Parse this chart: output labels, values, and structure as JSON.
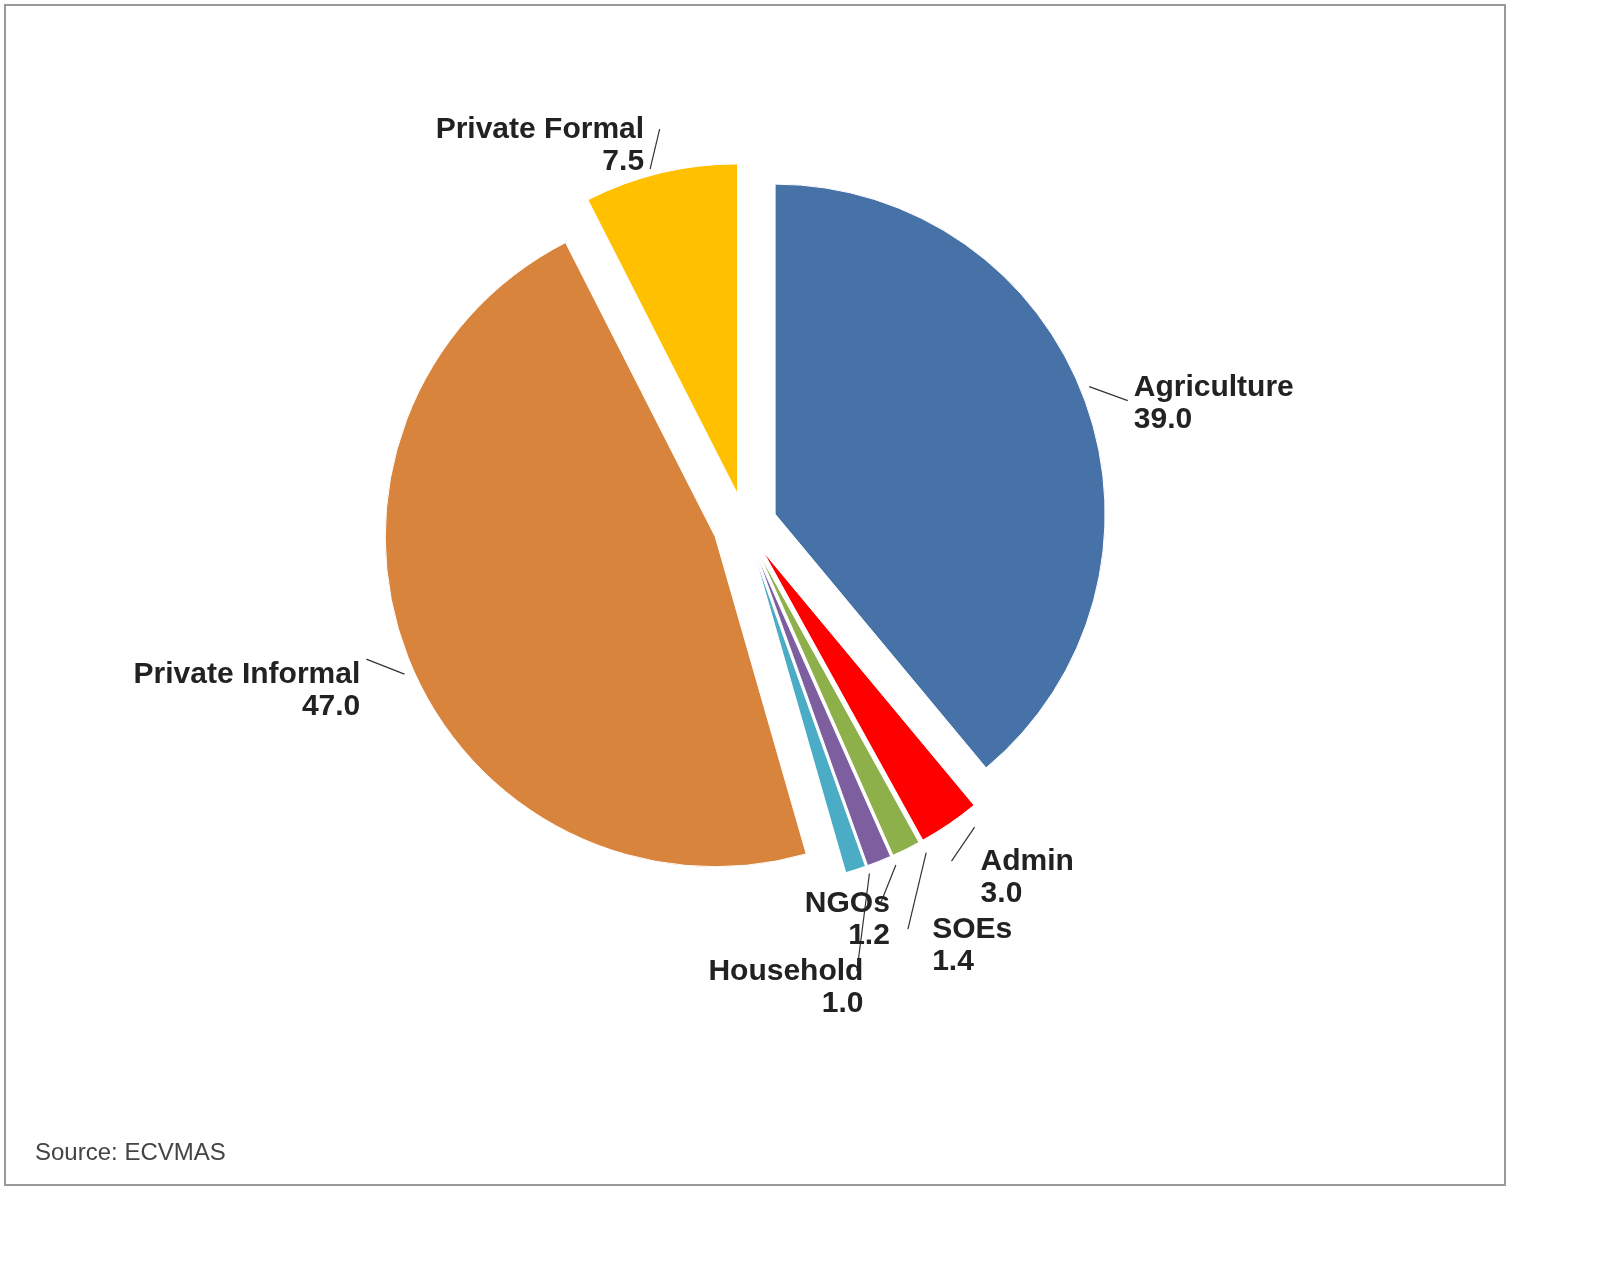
{
  "chart_data": {
    "type": "pie",
    "categories": [
      "Agriculture",
      "Admin",
      "SOEs",
      "NGOs",
      "Household",
      "Private Informal",
      "Private Formal"
    ],
    "values": [
      39.0,
      3.0,
      1.4,
      1.2,
      1.0,
      47.0,
      7.5
    ],
    "colors": [
      "#4672a8",
      "#ff0000",
      "#8db04a",
      "#7d5fa0",
      "#4bacc6",
      "#d9843c",
      "#ffc000"
    ],
    "value_labels": [
      "39.0",
      "3.0",
      "1.4",
      "1.2",
      "1.0",
      "47.0",
      "7.5"
    ],
    "annotations": [
      "Source: ECVMAS"
    ]
  }
}
